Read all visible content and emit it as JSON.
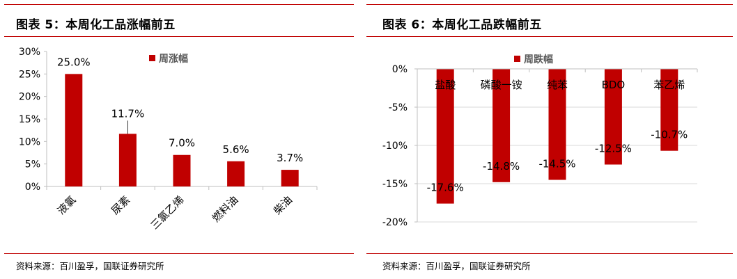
{
  "colors": {
    "accent": "#c00000",
    "bar": "#c00000",
    "axis": "#bfbfbf"
  },
  "charts": [
    {
      "title": "图表 5：本周化工品涨幅前五",
      "source": "资料来源：百川盈孚，国联证券研究所"
    },
    {
      "title": "图表 6：本周化工品跌幅前五",
      "source": "资料来源：百川盈孚，国联证券研究所"
    }
  ],
  "chart_data": [
    {
      "type": "bar",
      "title": "图表 5：本周化工品涨幅前五",
      "categories": [
        "液氯",
        "尿素",
        "三氯乙烯",
        "燃料油",
        "柴油"
      ],
      "series": [
        {
          "name": "周涨幅",
          "values": [
            25.0,
            11.7,
            7.0,
            5.6,
            3.7
          ]
        }
      ],
      "data_labels": [
        "25.0%",
        "11.7%",
        "7.0%",
        "5.6%",
        "3.7%"
      ],
      "yticks": [
        "30%",
        "25%",
        "20%",
        "15%",
        "10%",
        "5%",
        "0%"
      ],
      "ylim": [
        0,
        30
      ],
      "legend": "top-center",
      "grid": false
    },
    {
      "type": "bar",
      "title": "图表 6：本周化工品跌幅前五",
      "categories": [
        "盐酸",
        "磷酸一铵",
        "纯苯",
        "BDO",
        "苯乙烯"
      ],
      "series": [
        {
          "name": "周跌幅",
          "values": [
            -17.6,
            -14.8,
            -14.5,
            -12.5,
            -10.7
          ]
        }
      ],
      "data_labels": [
        "-17.6%",
        "-14.8%",
        "-14.5%",
        "-12.5%",
        "-10.7%"
      ],
      "yticks": [
        "0%",
        "-5%",
        "-10%",
        "-15%",
        "-20%"
      ],
      "ylim": [
        -20,
        0
      ],
      "legend": "top-center",
      "grid": true
    }
  ]
}
